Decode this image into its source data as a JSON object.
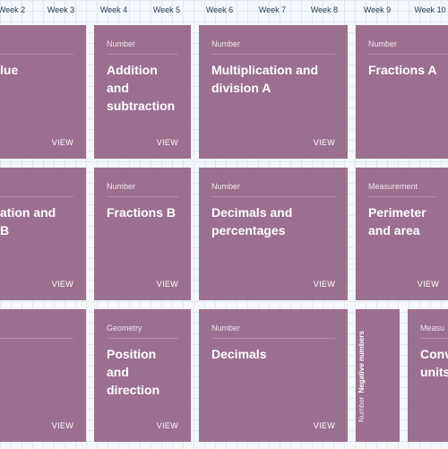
{
  "weeks": [
    "Week 2",
    "Week 3",
    "Week 4",
    "Week 5",
    "Week 6",
    "Week 7",
    "Week 8",
    "Week 9",
    "Week 10"
  ],
  "view_label": "VIEW",
  "cards": [
    {
      "category": "",
      "title": "lue",
      "view": "VIEW"
    },
    {
      "category": "Number",
      "title": "Addition\nand\nsubtraction",
      "view": "VIEW"
    },
    {
      "category": "Number",
      "title": "Multiplication and\ndivision A",
      "view": "VIEW"
    },
    {
      "category": "Number",
      "title": "Fractions A",
      "view": ""
    },
    {
      "category": "",
      "title": "ation and\nB",
      "view": "VIEW"
    },
    {
      "category": "Number",
      "title": "Fractions B",
      "view": "VIEW"
    },
    {
      "category": "Number",
      "title": "Decimals and\npercentages",
      "view": "VIEW"
    },
    {
      "category": "Measurement",
      "title": "Perimeter\nand area",
      "view": "VIEW"
    },
    {
      "category": "",
      "title": "",
      "view": "VIEW"
    },
    {
      "category": "Geometry",
      "title": "Position\nand\ndirection",
      "view": "VIEW"
    },
    {
      "category": "Number",
      "title": "Decimals",
      "view": "VIEW"
    },
    {
      "category": "Number",
      "title": "Negative numbers",
      "view": ""
    },
    {
      "category": "Measu",
      "title": "Conv\nunits",
      "view": ""
    }
  ]
}
